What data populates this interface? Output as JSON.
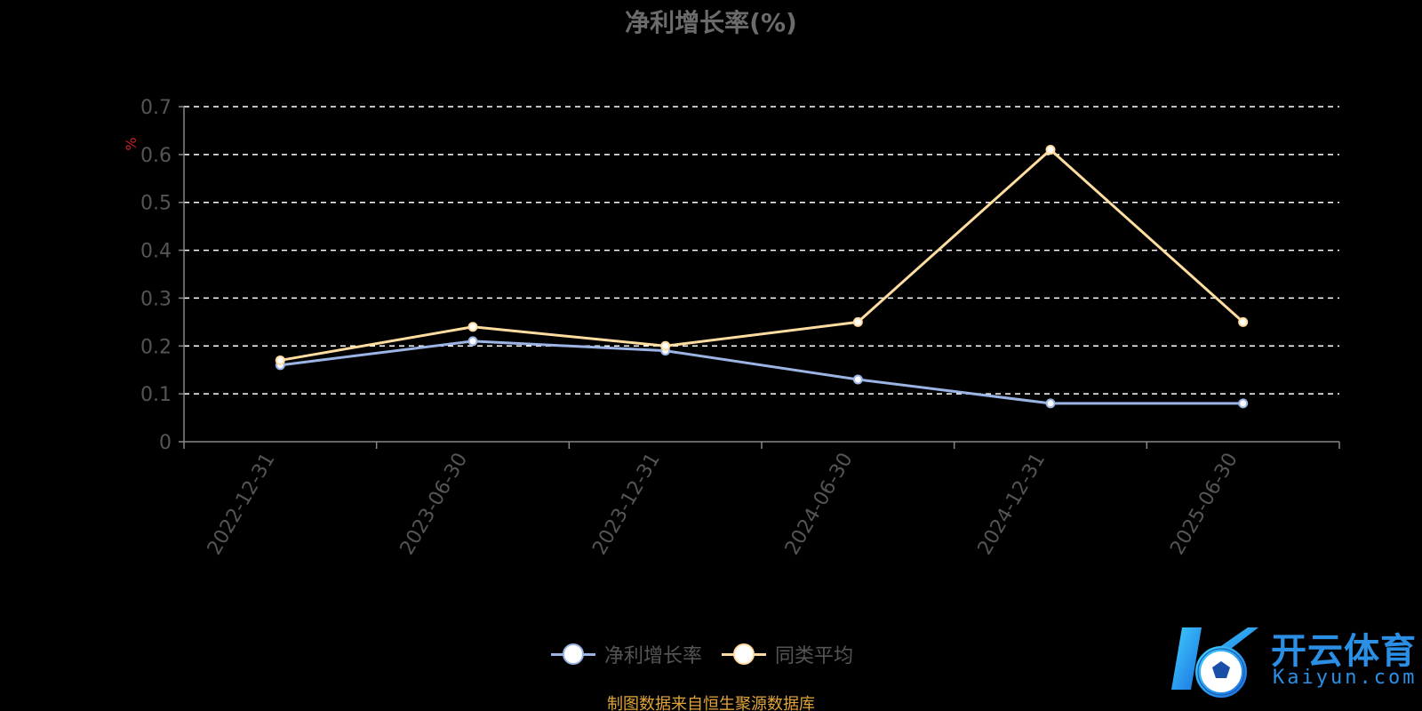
{
  "chart_data": {
    "type": "line",
    "title": "净利增长率(%)",
    "ylabel": "%",
    "xlabel": "",
    "ylim": [
      0,
      0.7
    ],
    "yticks": [
      0,
      0.1,
      0.2,
      0.3,
      0.4,
      0.5,
      0.6,
      0.7
    ],
    "ytick_labels": [
      "0",
      "0.1",
      "0.2",
      "0.3",
      "0.4",
      "0.5",
      "0.6",
      "0.7"
    ],
    "categories": [
      "2022-12-31",
      "2023-06-30",
      "2023-12-31",
      "2024-06-30",
      "2024-12-31",
      "2025-06-30"
    ],
    "grid": true,
    "legend_position": "bottom-center",
    "series": [
      {
        "name": "净利增长率",
        "color": "#9bb4e3",
        "values": [
          0.16,
          0.21,
          0.19,
          0.13,
          0.08,
          0.08
        ]
      },
      {
        "name": "同类平均",
        "color": "#ffdca0",
        "values": [
          0.17,
          0.24,
          0.2,
          0.25,
          0.61,
          0.25
        ]
      }
    ],
    "source_note": "制图数据来自恒生聚源数据库"
  },
  "watermark": {
    "cn": "开云体育",
    "en": "Kaiyun.com"
  },
  "colors": {
    "background": "#000000",
    "axis": "#888888",
    "tick_label": "#555555",
    "title": "#6b6b6b",
    "ylabel": "#cc2222",
    "grid": "#ffffff",
    "source_note": "#e0a43c",
    "logo": "#2b8fe6"
  }
}
